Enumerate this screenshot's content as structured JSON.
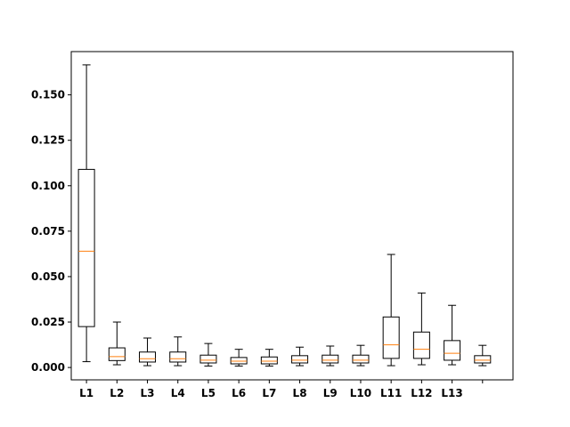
{
  "chart_data": {
    "type": "box",
    "title": "",
    "xlabel": "",
    "ylabel": "",
    "ylim": [
      -0.0068,
      0.1738
    ],
    "yticks": [
      0.0,
      0.025,
      0.05,
      0.075,
      0.1,
      0.125,
      0.15
    ],
    "ytick_labels": [
      "0.000",
      "0.025",
      "0.050",
      "0.075",
      "0.100",
      "0.125",
      "0.150"
    ],
    "categories": [
      "L1",
      "L2",
      "L3",
      "L4",
      "L5",
      "L6",
      "L7",
      "L8",
      "L9",
      "L10",
      "L11",
      "L12",
      "L13",
      ""
    ],
    "boxes": [
      {
        "whisker_low": 0.0032,
        "q1": 0.0225,
        "median": 0.064,
        "q3": 0.109,
        "whisker_high": 0.1665
      },
      {
        "whisker_low": 0.0015,
        "q1": 0.0038,
        "median": 0.006,
        "q3": 0.0108,
        "whisker_high": 0.025
      },
      {
        "whisker_low": 0.001,
        "q1": 0.003,
        "median": 0.0048,
        "q3": 0.0085,
        "whisker_high": 0.0162
      },
      {
        "whisker_low": 0.001,
        "q1": 0.003,
        "median": 0.0048,
        "q3": 0.0085,
        "whisker_high": 0.0168
      },
      {
        "whisker_low": 0.0008,
        "q1": 0.0025,
        "median": 0.004,
        "q3": 0.0068,
        "whisker_high": 0.0132
      },
      {
        "whisker_low": 0.0008,
        "q1": 0.002,
        "median": 0.0035,
        "q3": 0.0055,
        "whisker_high": 0.01
      },
      {
        "whisker_low": 0.0008,
        "q1": 0.002,
        "median": 0.0035,
        "q3": 0.0058,
        "whisker_high": 0.01
      },
      {
        "whisker_low": 0.001,
        "q1": 0.0025,
        "median": 0.004,
        "q3": 0.0065,
        "whisker_high": 0.0112
      },
      {
        "whisker_low": 0.001,
        "q1": 0.0025,
        "median": 0.004,
        "q3": 0.0068,
        "whisker_high": 0.0118
      },
      {
        "whisker_low": 0.001,
        "q1": 0.0025,
        "median": 0.004,
        "q3": 0.0068,
        "whisker_high": 0.0122
      },
      {
        "whisker_low": 0.001,
        "q1": 0.005,
        "median": 0.0125,
        "q3": 0.0278,
        "whisker_high": 0.0622
      },
      {
        "whisker_low": 0.0015,
        "q1": 0.005,
        "median": 0.01,
        "q3": 0.0195,
        "whisker_high": 0.041
      },
      {
        "whisker_low": 0.0015,
        "q1": 0.004,
        "median": 0.0078,
        "q3": 0.0148,
        "whisker_high": 0.0342
      },
      {
        "whisker_low": 0.001,
        "q1": 0.0025,
        "median": 0.004,
        "q3": 0.0065,
        "whisker_high": 0.0122
      }
    ],
    "colors": {
      "box": "#000000",
      "median": "#ff7f0e",
      "axes": "#000000"
    },
    "grid": false,
    "legend": "none"
  }
}
